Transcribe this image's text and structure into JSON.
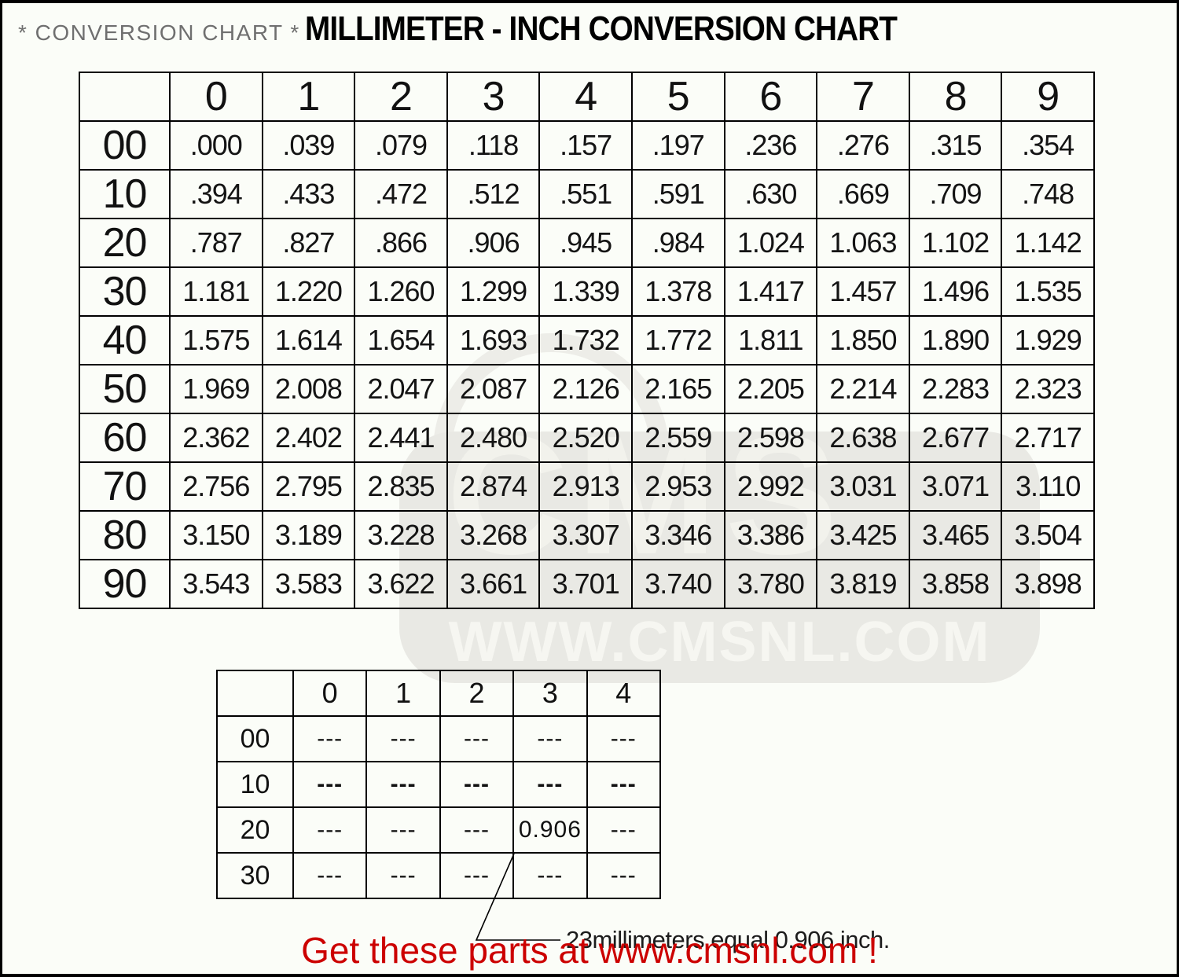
{
  "page": {
    "subtitle": "* CONVERSION CHART *",
    "title": "MILLIMETER - INCH CONVERSION CHART",
    "footer": "Get these parts at www.cmsnl.com !"
  },
  "colors": {
    "footer_red": "#cc0000",
    "subtitle_gray": "#6f6f6f",
    "watermark_gray": "#e9e9e4"
  },
  "watermark": {
    "logo": "CMS",
    "site": "WWW.CMSNL.COM"
  },
  "chart_data": {
    "type": "table",
    "title": "MILLIMETER - INCH CONVERSION CHART",
    "col_headers": [
      "0",
      "1",
      "2",
      "3",
      "4",
      "5",
      "6",
      "7",
      "8",
      "9"
    ],
    "row_headers": [
      "00",
      "10",
      "20",
      "30",
      "40",
      "50",
      "60",
      "70",
      "80",
      "90"
    ],
    "rows": [
      [
        ".000",
        ".039",
        ".079",
        ".118",
        ".157",
        ".197",
        ".236",
        ".276",
        ".315",
        ".354"
      ],
      [
        ".394",
        ".433",
        ".472",
        ".512",
        ".551",
        ".591",
        ".630",
        ".669",
        ".709",
        ".748"
      ],
      [
        ".787",
        ".827",
        ".866",
        ".906",
        ".945",
        ".984",
        "1.024",
        "1.063",
        "1.102",
        "1.142"
      ],
      [
        "1.181",
        "1.220",
        "1.260",
        "1.299",
        "1.339",
        "1.378",
        "1.417",
        "1.457",
        "1.496",
        "1.535"
      ],
      [
        "1.575",
        "1.614",
        "1.654",
        "1.693",
        "1.732",
        "1.772",
        "1.811",
        "1.850",
        "1.890",
        "1.929"
      ],
      [
        "1.969",
        "2.008",
        "2.047",
        "2.087",
        "2.126",
        "2.165",
        "2.205",
        "2.214",
        "2.283",
        "2.323"
      ],
      [
        "2.362",
        "2.402",
        "2.441",
        "2.480",
        "2.520",
        "2.559",
        "2.598",
        "2.638",
        "2.677",
        "2.717"
      ],
      [
        "2.756",
        "2.795",
        "2.835",
        "2.874",
        "2.913",
        "2.953",
        "2.992",
        "3.031",
        "3.071",
        "3.110"
      ],
      [
        "3.150",
        "3.189",
        "3.228",
        "3.268",
        "3.307",
        "3.346",
        "3.386",
        "3.425",
        "3.465",
        "3.504"
      ],
      [
        "3.543",
        "3.583",
        "3.622",
        "3.661",
        "3.701",
        "3.740",
        "3.780",
        "3.819",
        "3.858",
        "3.898"
      ]
    ]
  },
  "example_table": {
    "col_headers": [
      "0",
      "1",
      "2",
      "3",
      "4"
    ],
    "row_headers": [
      "00",
      "10",
      "20",
      "30"
    ],
    "rows": [
      [
        "---",
        "---",
        "---",
        "---",
        "---"
      ],
      [
        "---",
        "---",
        "---",
        "---",
        "---"
      ],
      [
        "---",
        "---",
        "---",
        "0.906",
        "---"
      ],
      [
        "---",
        "---",
        "---",
        "---",
        "---"
      ]
    ],
    "bold_rows": [
      1
    ]
  },
  "annotation": {
    "text": "23millimeters equal 0.906 inch."
  }
}
